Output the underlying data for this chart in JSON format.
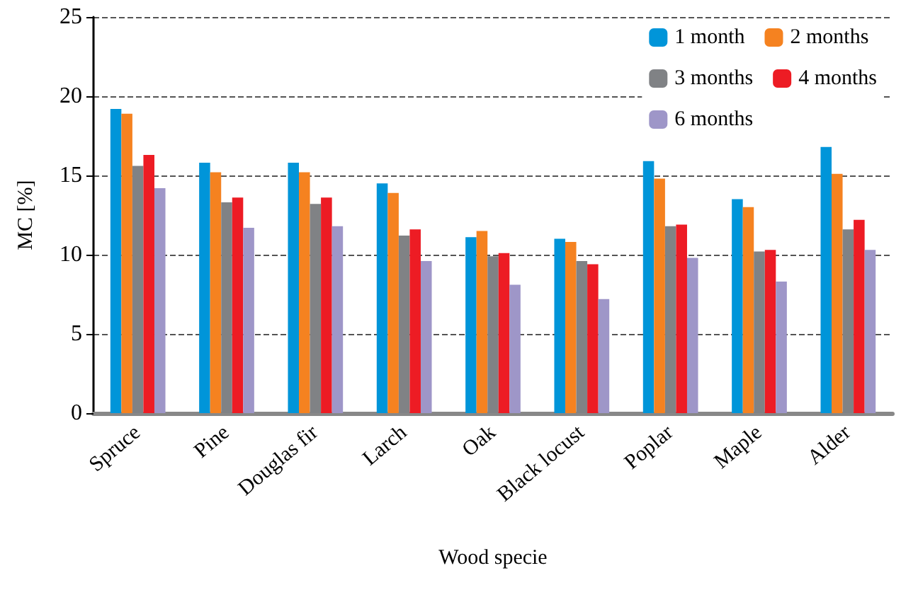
{
  "chart_data": {
    "type": "bar",
    "xlabel": "Wood specie",
    "ylabel": "MC [%]",
    "categories": [
      "Spruce",
      "Pine",
      "Douglas fir",
      "Larch",
      "Oak",
      "Black locust",
      "Poplar",
      "Maple",
      "Alder"
    ],
    "series": [
      {
        "name": "1 month",
        "color": "#0095d9",
        "values": [
          19.2,
          15.8,
          15.8,
          14.5,
          11.1,
          11.0,
          15.9,
          13.5,
          16.8
        ]
      },
      {
        "name": "2 months",
        "color": "#f58220",
        "values": [
          18.9,
          15.2,
          15.2,
          13.9,
          11.5,
          10.8,
          14.8,
          13.0,
          15.1
        ]
      },
      {
        "name": "3 months",
        "color": "#808285",
        "values": [
          15.6,
          13.3,
          13.2,
          11.2,
          9.9,
          9.6,
          11.8,
          10.2,
          11.6
        ]
      },
      {
        "name": "4 months",
        "color": "#ed1c24",
        "values": [
          16.3,
          13.6,
          13.6,
          11.6,
          10.1,
          9.4,
          11.9,
          10.3,
          12.2
        ]
      },
      {
        "name": "6 months",
        "color": "#9e96c8",
        "values": [
          14.2,
          11.7,
          11.8,
          9.6,
          8.1,
          7.2,
          9.8,
          8.3,
          10.3
        ]
      }
    ],
    "ylim": [
      0,
      25
    ],
    "yticks": [
      0,
      5,
      10,
      15,
      20,
      25
    ],
    "grid": "y",
    "legend": "top right"
  }
}
